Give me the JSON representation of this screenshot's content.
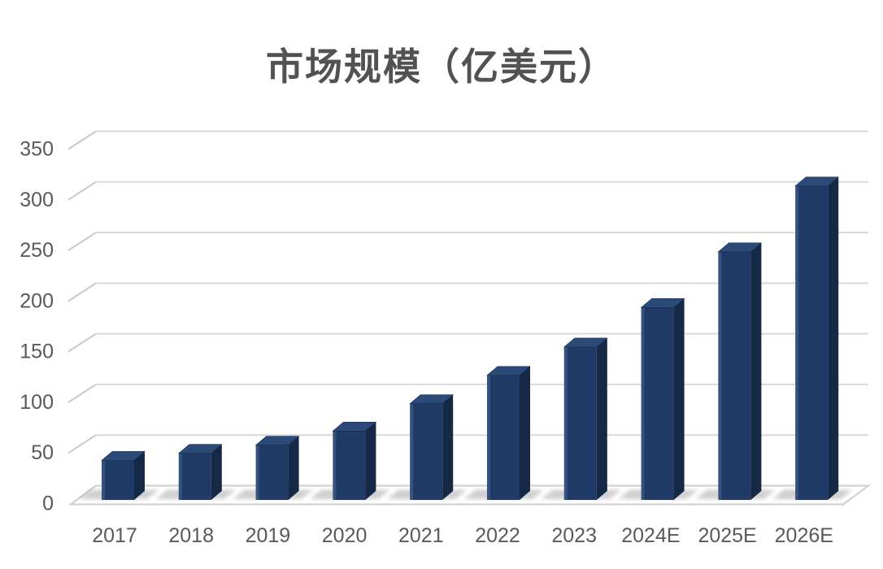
{
  "chart_data": {
    "type": "bar",
    "style": "3d-column",
    "title": "市场规模（亿美元）",
    "categories": [
      "2017",
      "2018",
      "2019",
      "2020",
      "2021",
      "2022",
      "2023",
      "2024E",
      "2025E",
      "2026E"
    ],
    "values": [
      39,
      46,
      54,
      68,
      95,
      123,
      151,
      190,
      245,
      310
    ],
    "series_name": "市场规模",
    "xlabel": "",
    "ylabel": "",
    "ylim": [
      0,
      350
    ],
    "ytick_interval": 50,
    "ytick_labels": [
      "0",
      "50",
      "100",
      "150",
      "200",
      "250",
      "300",
      "350"
    ],
    "grid": "horizontal-3d",
    "legend": "none",
    "colors": {
      "bar_front": "#1f3a66",
      "bar_top": "#2b4a78",
      "bar_side": "#152947",
      "bar_highlight": "rgba(120,150,200,0.25)",
      "gridline": "#d9d9d9",
      "grid_diagonal": "#c9c9c9",
      "floor_edge": "#d2d2d2",
      "shadow": "#8f8f8f",
      "axis_text": "#595959",
      "title_text": "#525252",
      "background": "#ffffff"
    }
  }
}
